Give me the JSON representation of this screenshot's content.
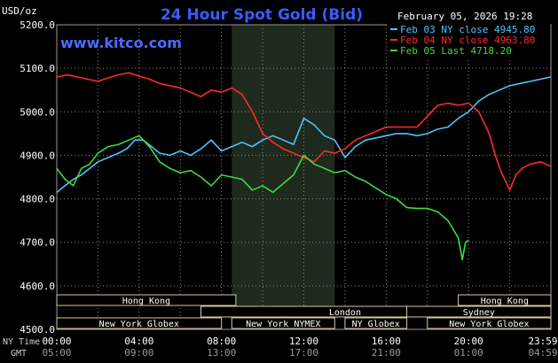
{
  "header": {
    "title": "24 Hour Spot Gold (Bid)",
    "unit": "USD/oz",
    "date": "February 05, 2026 19:28",
    "watermark": "www.kitco.com"
  },
  "sessions": [
    {
      "label": "Hong Kong",
      "row": 0,
      "start": 0.0,
      "end": 8.7
    },
    {
      "label": "London",
      "row": 1,
      "start": 7.0,
      "end": 21.0
    },
    {
      "label": "New York Globex",
      "row": 2,
      "start": 0.0,
      "end": 8.0
    },
    {
      "label": "New York NYMEX",
      "row": 2,
      "start": 8.5,
      "end": 13.5
    },
    {
      "label": "NY Globex",
      "row": 2,
      "start": 14.0,
      "end": 17.0
    },
    {
      "label": "Hong Kong",
      "row": 0,
      "start": 19.5,
      "end": 24.0
    },
    {
      "label": "Sydney",
      "row": 1,
      "start": 17.0,
      "end": 24.0
    },
    {
      "label": "New York Globex",
      "row": 2,
      "start": 18.0,
      "end": 24.0
    }
  ],
  "footer": {
    "nytime_label": "NY Time",
    "gmt_label": "GMT",
    "ny_ticks": [
      "00:00",
      "04:00",
      "08:00",
      "12:00",
      "16:00",
      "20:00",
      "23:59"
    ],
    "gmt_ticks": [
      "05:00",
      "09:00",
      "13:00",
      "17:00",
      "21:00",
      "01:00",
      "04:59"
    ]
  },
  "chart_data": {
    "type": "line",
    "title": "24 Hour Spot Gold (Bid)",
    "ylabel": "USD/oz",
    "xlim": [
      0,
      24
    ],
    "ylim": [
      4500,
      5200
    ],
    "y_ticks": [
      "5200.0",
      "5100.0",
      "5000.0",
      "4900.0",
      "4800.0",
      "4700.0",
      "4600.0",
      "4500.0"
    ],
    "grid": true,
    "legend_position": "top-right",
    "shaded_region": [
      8.5,
      13.5
    ],
    "series": [
      {
        "name": "Feb 03 NY close 4945.80",
        "color": "#4dc3ff",
        "x": [
          0,
          0.4,
          0.8,
          1.2,
          1.6,
          2.0,
          2.5,
          3.0,
          3.4,
          3.8,
          4.2,
          4.6,
          5.0,
          5.5,
          6.0,
          6.5,
          7.0,
          7.5,
          8.0,
          8.5,
          9.0,
          9.5,
          10.0,
          10.5,
          11.0,
          11.5,
          12.0,
          12.5,
          13.0,
          13.5,
          14.0,
          14.5,
          15.0,
          15.5,
          16.0,
          16.5,
          17.0,
          17.5,
          18.0,
          18.5,
          19.0,
          19.5,
          20.0,
          20.5,
          21.0,
          21.5,
          22.0,
          22.5,
          23.0,
          23.5,
          23.98
        ],
        "y": [
          4815,
          4830,
          4845,
          4855,
          4870,
          4885,
          4895,
          4905,
          4915,
          4935,
          4935,
          4920,
          4905,
          4900,
          4910,
          4900,
          4915,
          4935,
          4910,
          4920,
          4930,
          4920,
          4935,
          4945,
          4935,
          4925,
          4985,
          4970,
          4945,
          4935,
          4895,
          4920,
          4935,
          4940,
          4945,
          4950,
          4950,
          4945,
          4950,
          4960,
          4965,
          4985,
          5000,
          5025,
          5040,
          5050,
          5060,
          5065,
          5070,
          5075,
          5080
        ]
      },
      {
        "name": "Feb 04 NY close 4963.80",
        "color": "#ff2a2a",
        "x": [
          0,
          0.5,
          1.0,
          1.5,
          2.0,
          2.5,
          3.0,
          3.5,
          4.0,
          4.5,
          5.0,
          5.5,
          6.0,
          6.5,
          7.0,
          7.5,
          8.0,
          8.5,
          9.0,
          9.5,
          10.0,
          10.5,
          11.0,
          11.5,
          12.0,
          12.5,
          13.0,
          13.5,
          14.0,
          14.5,
          15.0,
          15.5,
          16.0,
          16.5,
          17.0,
          17.5,
          18.0,
          18.5,
          19.0,
          19.5,
          20.0,
          20.5,
          21.0,
          21.3,
          21.6,
          22.0,
          22.3,
          22.6,
          23.0,
          23.5,
          23.98
        ],
        "y": [
          5080,
          5085,
          5080,
          5075,
          5070,
          5078,
          5085,
          5090,
          5082,
          5075,
          5065,
          5060,
          5055,
          5045,
          5035,
          5050,
          5045,
          5055,
          5040,
          5000,
          4950,
          4930,
          4915,
          4905,
          4895,
          4885,
          4910,
          4905,
          4915,
          4935,
          4945,
          4955,
          4965,
          4965,
          4965,
          4965,
          4990,
          5015,
          5020,
          5015,
          5020,
          5000,
          4950,
          4900,
          4860,
          4820,
          4855,
          4870,
          4880,
          4885,
          4875
        ]
      },
      {
        "name": "Feb 05 Last 4718.20",
        "color": "#3ddc3d",
        "x": [
          0,
          0.4,
          0.8,
          1.2,
          1.6,
          2.0,
          2.5,
          3.0,
          3.5,
          4.0,
          4.5,
          5.0,
          5.5,
          6.0,
          6.5,
          7.0,
          7.5,
          8.0,
          8.5,
          9.0,
          9.5,
          10.0,
          10.5,
          11.0,
          11.5,
          12.0,
          12.5,
          13.0,
          13.5,
          14.0,
          14.5,
          15.0,
          15.5,
          16.0,
          16.5,
          17.0,
          17.5,
          18.0,
          18.5,
          19.0,
          19.5,
          19.7,
          19.85,
          20.0
        ],
        "y": [
          4870,
          4845,
          4830,
          4870,
          4880,
          4905,
          4920,
          4925,
          4935,
          4945,
          4920,
          4885,
          4870,
          4860,
          4865,
          4850,
          4830,
          4855,
          4850,
          4845,
          4820,
          4830,
          4815,
          4835,
          4855,
          4900,
          4880,
          4870,
          4860,
          4865,
          4850,
          4840,
          4825,
          4810,
          4800,
          4780,
          4778,
          4778,
          4770,
          4750,
          4710,
          4660,
          4700,
          4705
        ]
      }
    ]
  }
}
